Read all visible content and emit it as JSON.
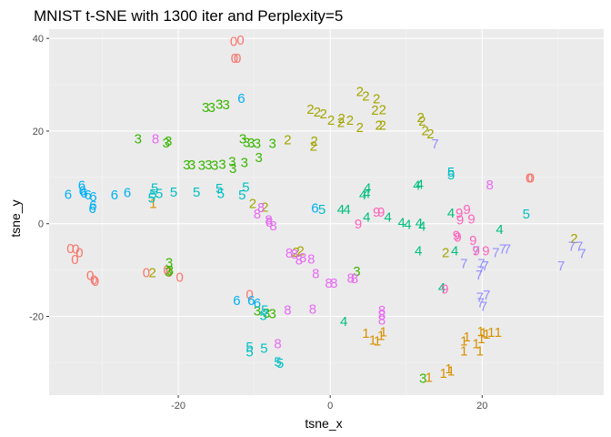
{
  "chart_data": {
    "type": "scatter",
    "title": "MNIST t-SNE with 1300 iter and Perplexity=5",
    "xlabel": "tsne_x",
    "ylabel": "tsne_y",
    "xlim": [
      -37,
      36
    ],
    "ylim": [
      -37,
      42
    ],
    "x_ticks": [
      -20,
      0,
      20
    ],
    "y_ticks": [
      -20,
      0,
      20,
      40
    ],
    "grid": true,
    "legend": "none",
    "colors": {
      "0": "#F8766D",
      "1": "#D89000",
      "2": "#A3A500",
      "3": "#39B600",
      "4": "#00BF7D",
      "5": "#00BFC4",
      "6": "#00B0F6",
      "7": "#9590FF",
      "8": "#E76BF3",
      "9": "#FF62BC"
    },
    "points": [
      {
        "label": "0",
        "x": -12.7,
        "y": 39.3
      },
      {
        "label": "0",
        "x": -11.8,
        "y": 39.6
      },
      {
        "label": "0",
        "x": -12.6,
        "y": 35.7
      },
      {
        "label": "0",
        "x": -12.2,
        "y": 35.7
      },
      {
        "label": "0",
        "x": -34.2,
        "y": -5.4
      },
      {
        "label": "0",
        "x": -33.5,
        "y": -5.5
      },
      {
        "label": "0",
        "x": -33.0,
        "y": -6.2
      },
      {
        "label": "0",
        "x": -33.6,
        "y": -7.7
      },
      {
        "label": "0",
        "x": -31.6,
        "y": -11.2
      },
      {
        "label": "0",
        "x": -31.1,
        "y": -12.1
      },
      {
        "label": "0",
        "x": -30.9,
        "y": -12.4
      },
      {
        "label": "0",
        "x": -21.5,
        "y": -10.0
      },
      {
        "label": "0",
        "x": -21.2,
        "y": -10.5
      },
      {
        "label": "0",
        "x": -19.8,
        "y": -11.6
      },
      {
        "label": "0",
        "x": -24.2,
        "y": -10.6
      },
      {
        "label": "0",
        "x": -10.6,
        "y": -15.3
      },
      {
        "label": "0",
        "x": 26.2,
        "y": 9.9
      },
      {
        "label": "0",
        "x": 26.4,
        "y": 9.9
      },
      {
        "label": "1",
        "x": -23.3,
        "y": 4.4
      },
      {
        "label": "1",
        "x": 4.7,
        "y": -23.6
      },
      {
        "label": "1",
        "x": 5.6,
        "y": -25.1
      },
      {
        "label": "1",
        "x": 6.2,
        "y": -25.3
      },
      {
        "label": "1",
        "x": 6.7,
        "y": -24.1
      },
      {
        "label": "1",
        "x": 7.0,
        "y": -23.3
      },
      {
        "label": "1",
        "x": 15.6,
        "y": -31.3
      },
      {
        "label": "1",
        "x": 15.9,
        "y": -31.8
      },
      {
        "label": "1",
        "x": 14.9,
        "y": -32.3
      },
      {
        "label": "1",
        "x": 13.0,
        "y": -33.2
      },
      {
        "label": "1",
        "x": 17.6,
        "y": -25.3
      },
      {
        "label": "1",
        "x": 18.0,
        "y": -24.4
      },
      {
        "label": "1",
        "x": 17.6,
        "y": -27.5
      },
      {
        "label": "1",
        "x": 19.7,
        "y": -27.5
      },
      {
        "label": "1",
        "x": 19.2,
        "y": -25.9
      },
      {
        "label": "1",
        "x": 19.9,
        "y": -24.8
      },
      {
        "label": "1",
        "x": 20.2,
        "y": -23.5
      },
      {
        "label": "1",
        "x": 19.8,
        "y": -23.2
      },
      {
        "label": "1",
        "x": 20.6,
        "y": -23.8
      },
      {
        "label": "1",
        "x": 21.2,
        "y": -23.4
      },
      {
        "label": "1",
        "x": 22.1,
        "y": -23.4
      },
      {
        "label": "2",
        "x": 3.9,
        "y": 28.5
      },
      {
        "label": "2",
        "x": 4.7,
        "y": 27.6
      },
      {
        "label": "2",
        "x": 6.1,
        "y": 27.0
      },
      {
        "label": "2",
        "x": 6.9,
        "y": 24.6
      },
      {
        "label": "2",
        "x": 5.9,
        "y": 24.5
      },
      {
        "label": "2",
        "x": -2.6,
        "y": 24.7
      },
      {
        "label": "2",
        "x": -1.7,
        "y": 24.1
      },
      {
        "label": "2",
        "x": -0.9,
        "y": 23.7
      },
      {
        "label": "2",
        "x": 0.1,
        "y": 22.3
      },
      {
        "label": "2",
        "x": 1.5,
        "y": 22.7
      },
      {
        "label": "2",
        "x": 1.4,
        "y": 21.9
      },
      {
        "label": "2",
        "x": 2.6,
        "y": 22.3
      },
      {
        "label": "2",
        "x": 3.9,
        "y": 20.8
      },
      {
        "label": "2",
        "x": 6.4,
        "y": 21.3
      },
      {
        "label": "2",
        "x": 6.9,
        "y": 21.3
      },
      {
        "label": "2",
        "x": -2.1,
        "y": 17.8
      },
      {
        "label": "2",
        "x": -2.2,
        "y": 16.7
      },
      {
        "label": "2",
        "x": -5.6,
        "y": 18.1
      },
      {
        "label": "2",
        "x": 11.9,
        "y": 22.9
      },
      {
        "label": "2",
        "x": 12.1,
        "y": 22.2
      },
      {
        "label": "2",
        "x": 12.5,
        "y": 20.1
      },
      {
        "label": "2",
        "x": 13.2,
        "y": 19.4
      },
      {
        "label": "2",
        "x": -10.2,
        "y": 4.4
      },
      {
        "label": "2",
        "x": -8.6,
        "y": 3.6
      },
      {
        "label": "2",
        "x": -23.4,
        "y": -10.6
      },
      {
        "label": "2",
        "x": -4.5,
        "y": -6.1
      },
      {
        "label": "2",
        "x": -3.9,
        "y": -5.9
      },
      {
        "label": "2",
        "x": 15.2,
        "y": -6.2
      },
      {
        "label": "2",
        "x": 32.1,
        "y": -3.2
      },
      {
        "label": "3",
        "x": -13.7,
        "y": 25.7
      },
      {
        "label": "3",
        "x": -14.6,
        "y": 25.8
      },
      {
        "label": "3",
        "x": -15.6,
        "y": 25.1
      },
      {
        "label": "3",
        "x": -16.4,
        "y": 25.1
      },
      {
        "label": "3",
        "x": -25.3,
        "y": 18.3
      },
      {
        "label": "3",
        "x": -21.6,
        "y": 17.4
      },
      {
        "label": "3",
        "x": -21.3,
        "y": 17.8
      },
      {
        "label": "3",
        "x": -11.5,
        "y": 18.3
      },
      {
        "label": "3",
        "x": -11.0,
        "y": 17.5
      },
      {
        "label": "3",
        "x": -10.4,
        "y": 17.4
      },
      {
        "label": "3",
        "x": -9.6,
        "y": 17.3
      },
      {
        "label": "3",
        "x": -7.6,
        "y": 17.3
      },
      {
        "label": "3",
        "x": -9.4,
        "y": 14.3
      },
      {
        "label": "3",
        "x": -12.9,
        "y": 13.4
      },
      {
        "label": "3",
        "x": -11.3,
        "y": 13.2
      },
      {
        "label": "3",
        "x": -14.2,
        "y": 12.8
      },
      {
        "label": "3",
        "x": -15.2,
        "y": 12.6
      },
      {
        "label": "3",
        "x": -16.9,
        "y": 12.6
      },
      {
        "label": "3",
        "x": -12.8,
        "y": 11.9
      },
      {
        "label": "3",
        "x": -18.9,
        "y": 12.7
      },
      {
        "label": "3",
        "x": -18.2,
        "y": 12.7
      },
      {
        "label": "3",
        "x": -16.0,
        "y": 12.7
      },
      {
        "label": "3",
        "x": -21.2,
        "y": -8.4
      },
      {
        "label": "3",
        "x": -21.1,
        "y": -10.1
      },
      {
        "label": "3",
        "x": -21.3,
        "y": -10.4
      },
      {
        "label": "3",
        "x": -8.4,
        "y": -19.3
      },
      {
        "label": "3",
        "x": -9.6,
        "y": -18.8
      },
      {
        "label": "3",
        "x": -7.6,
        "y": -19.4
      },
      {
        "label": "3",
        "x": 3.5,
        "y": -10.3
      },
      {
        "label": "3",
        "x": 12.2,
        "y": -33.4
      },
      {
        "label": "4",
        "x": 4.9,
        "y": 7.7
      },
      {
        "label": "4",
        "x": 4.3,
        "y": 6.2
      },
      {
        "label": "4",
        "x": 4.8,
        "y": 6.5
      },
      {
        "label": "4",
        "x": 11.4,
        "y": 8.3
      },
      {
        "label": "4",
        "x": 11.8,
        "y": 8.5
      },
      {
        "label": "4",
        "x": 1.4,
        "y": 3.1
      },
      {
        "label": "4",
        "x": 2.2,
        "y": 3.1
      },
      {
        "label": "4",
        "x": 4.8,
        "y": 1.4
      },
      {
        "label": "4",
        "x": 7.6,
        "y": 1.4
      },
      {
        "label": "4",
        "x": 9.4,
        "y": 0.2
      },
      {
        "label": "4",
        "x": 10.2,
        "y": -0.2
      },
      {
        "label": "4",
        "x": 11.7,
        "y": 0.1
      },
      {
        "label": "4",
        "x": 12.1,
        "y": -0.5
      },
      {
        "label": "4",
        "x": 15.9,
        "y": 2.3
      },
      {
        "label": "4",
        "x": 22.3,
        "y": -1.2
      },
      {
        "label": "4",
        "x": 11.6,
        "y": -5.9
      },
      {
        "label": "4",
        "x": 16.4,
        "y": -5.9
      },
      {
        "label": "4",
        "x": 14.7,
        "y": -13.8
      },
      {
        "label": "4",
        "x": 1.8,
        "y": -21.1
      },
      {
        "label": "5",
        "x": -23.1,
        "y": 7.7
      },
      {
        "label": "5",
        "x": -22.5,
        "y": 6.5
      },
      {
        "label": "5",
        "x": -23.3,
        "y": 6.4
      },
      {
        "label": "5",
        "x": -23.5,
        "y": 5.5
      },
      {
        "label": "5",
        "x": -20.6,
        "y": 6.8
      },
      {
        "label": "5",
        "x": -17.6,
        "y": 6.8
      },
      {
        "label": "5",
        "x": -14.6,
        "y": 7.6
      },
      {
        "label": "5",
        "x": -14.4,
        "y": 6.5
      },
      {
        "label": "5",
        "x": -11.6,
        "y": 6.2
      },
      {
        "label": "5",
        "x": -11.1,
        "y": 7.9
      },
      {
        "label": "5",
        "x": -1.1,
        "y": 3.1
      },
      {
        "label": "5",
        "x": 15.9,
        "y": 11.1
      },
      {
        "label": "5",
        "x": 15.9,
        "y": 10.6
      },
      {
        "label": "5",
        "x": 25.8,
        "y": 2.1
      },
      {
        "label": "5",
        "x": -8.6,
        "y": -18.6
      },
      {
        "label": "5",
        "x": -8.8,
        "y": -19.8
      },
      {
        "label": "5",
        "x": -10.6,
        "y": -26.6
      },
      {
        "label": "5",
        "x": -10.6,
        "y": -27.7
      },
      {
        "label": "5",
        "x": -8.7,
        "y": -26.9
      },
      {
        "label": "5",
        "x": -6.9,
        "y": -29.8
      },
      {
        "label": "5",
        "x": -6.6,
        "y": -30.1
      },
      {
        "label": "6",
        "x": -32.7,
        "y": 8.3
      },
      {
        "label": "6",
        "x": -34.5,
        "y": 6.3
      },
      {
        "label": "6",
        "x": -32.6,
        "y": 7.1
      },
      {
        "label": "6",
        "x": -32.4,
        "y": 6.6
      },
      {
        "label": "6",
        "x": -31.9,
        "y": 6.2
      },
      {
        "label": "6",
        "x": -31.2,
        "y": 5.8
      },
      {
        "label": "6",
        "x": -28.4,
        "y": 6.2
      },
      {
        "label": "6",
        "x": -26.7,
        "y": 6.7
      },
      {
        "label": "6",
        "x": -31.2,
        "y": 4.0
      },
      {
        "label": "6",
        "x": -31.3,
        "y": 3.3
      },
      {
        "label": "6",
        "x": -11.7,
        "y": 27.1
      },
      {
        "label": "6",
        "x": -2.0,
        "y": 3.4
      },
      {
        "label": "6",
        "x": -12.3,
        "y": -16.6
      },
      {
        "label": "6",
        "x": -10.4,
        "y": -16.6
      },
      {
        "label": "6",
        "x": -9.6,
        "y": -17.2
      },
      {
        "label": "7",
        "x": 13.8,
        "y": 17.2
      },
      {
        "label": "7",
        "x": 17.6,
        "y": -8.6
      },
      {
        "label": "7",
        "x": 19.9,
        "y": -8.6
      },
      {
        "label": "7",
        "x": 20.4,
        "y": -9.1
      },
      {
        "label": "7",
        "x": 19.8,
        "y": -10.2
      },
      {
        "label": "7",
        "x": 19.6,
        "y": -11.1
      },
      {
        "label": "7",
        "x": 19.7,
        "y": -15.9
      },
      {
        "label": "7",
        "x": 20.6,
        "y": -15.4
      },
      {
        "label": "7",
        "x": 19.8,
        "y": -17.1
      },
      {
        "label": "7",
        "x": 20.2,
        "y": -17.8
      },
      {
        "label": "7",
        "x": 22.7,
        "y": -5.5
      },
      {
        "label": "7",
        "x": 23.3,
        "y": -5.5
      },
      {
        "label": "7",
        "x": 21.8,
        "y": -6.2
      },
      {
        "label": "7",
        "x": 19.2,
        "y": -5.9
      },
      {
        "label": "7",
        "x": 30.4,
        "y": -9.1
      },
      {
        "label": "7",
        "x": 31.8,
        "y": -4.9
      },
      {
        "label": "7",
        "x": 32.8,
        "y": -4.9
      },
      {
        "label": "7",
        "x": 33.2,
        "y": -6.4
      },
      {
        "label": "8",
        "x": -23.0,
        "y": 18.3
      },
      {
        "label": "8",
        "x": -9.1,
        "y": 3.5
      },
      {
        "label": "8",
        "x": -9.6,
        "y": 2.1
      },
      {
        "label": "8",
        "x": -8.1,
        "y": 0.8
      },
      {
        "label": "8",
        "x": -8.0,
        "y": 0.3
      },
      {
        "label": "8",
        "x": -7.5,
        "y": -0.4
      },
      {
        "label": "8",
        "x": -5.4,
        "y": -6.3
      },
      {
        "label": "8",
        "x": -4.7,
        "y": -6.5
      },
      {
        "label": "8",
        "x": -4.1,
        "y": -7.8
      },
      {
        "label": "8",
        "x": -3.6,
        "y": -7.3
      },
      {
        "label": "8",
        "x": -2.5,
        "y": -7.6
      },
      {
        "label": "8",
        "x": -1.9,
        "y": -10.8
      },
      {
        "label": "8",
        "x": -0.2,
        "y": -12.8
      },
      {
        "label": "8",
        "x": 0.5,
        "y": -12.8
      },
      {
        "label": "8",
        "x": 2.7,
        "y": -11.7
      },
      {
        "label": "8",
        "x": 3.2,
        "y": -11.8
      },
      {
        "label": "8",
        "x": -5.6,
        "y": -18.6
      },
      {
        "label": "8",
        "x": -2.3,
        "y": -18.4
      },
      {
        "label": "8",
        "x": -6.9,
        "y": -25.9
      },
      {
        "label": "8",
        "x": 6.8,
        "y": -18.7
      },
      {
        "label": "8",
        "x": 6.8,
        "y": -19.7
      },
      {
        "label": "8",
        "x": 6.8,
        "y": -20.8
      },
      {
        "label": "8",
        "x": 21.0,
        "y": 8.4
      },
      {
        "label": "9",
        "x": 18.0,
        "y": 3.1
      },
      {
        "label": "9",
        "x": 17.0,
        "y": 2.3
      },
      {
        "label": "9",
        "x": 18.6,
        "y": 1.0
      },
      {
        "label": "9",
        "x": 17.1,
        "y": 0.8
      },
      {
        "label": "9",
        "x": 16.6,
        "y": -2.5
      },
      {
        "label": "9",
        "x": 16.8,
        "y": -2.9
      },
      {
        "label": "9",
        "x": 18.8,
        "y": -3.6
      },
      {
        "label": "9",
        "x": 19.2,
        "y": -5.9
      },
      {
        "label": "9",
        "x": 20.5,
        "y": -5.9
      },
      {
        "label": "9",
        "x": 6.7,
        "y": 2.5
      },
      {
        "label": "9",
        "x": 6.1,
        "y": 2.5
      },
      {
        "label": "9",
        "x": 3.7,
        "y": -0.1
      },
      {
        "label": "9",
        "x": 15.1,
        "y": -14.1
      }
    ]
  }
}
